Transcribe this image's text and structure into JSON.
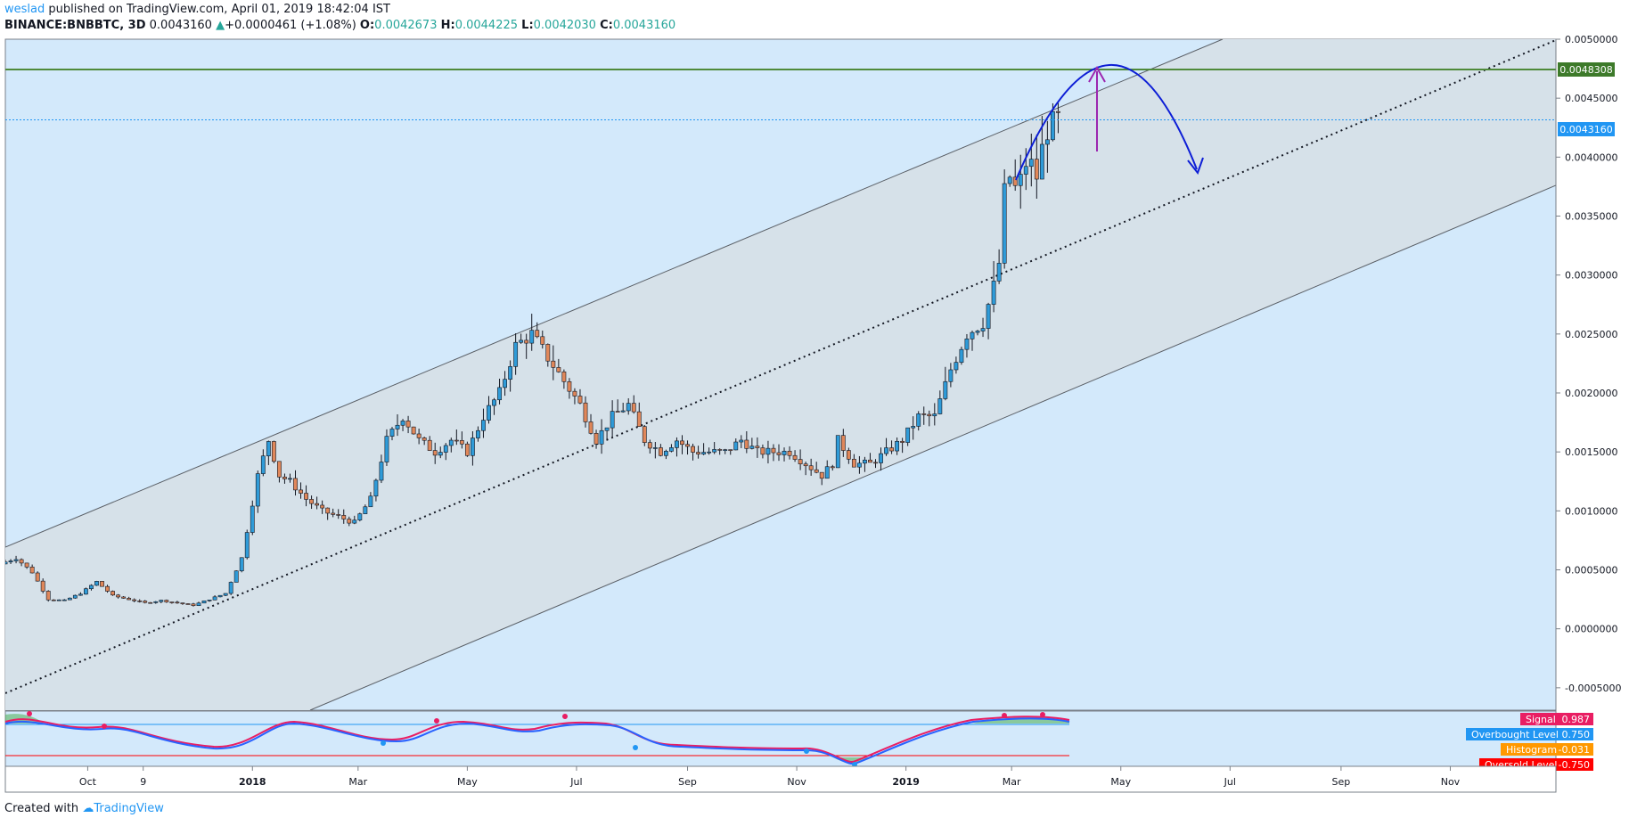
{
  "header": {
    "author": "weslad",
    "published_text": "published on TradingView.com, April 01, 2019 18:42:04 IST",
    "symbol": "BINANCE:BNBBTC, 3D",
    "last": "0.0043160",
    "change": "+0.0000461 (+1.08%)",
    "ohlc": [
      {
        "label": "O:",
        "value": "0.0042673"
      },
      {
        "label": "H:",
        "value": "0.0044225"
      },
      {
        "label": "L:",
        "value": "0.0042030"
      },
      {
        "label": "C:",
        "value": "0.0043160"
      }
    ]
  },
  "footer": {
    "created_with": "Created with",
    "brand": "TradingView"
  },
  "colors": {
    "background": "#d3e9fb",
    "channel_fill": "#d6e1e9",
    "up_candle": "#2f9bd8",
    "down_candle": "#e0875a",
    "resistance": "#4f8a3a",
    "arc": "#0d1ed6",
    "arrow": "#9c27b0",
    "last_price": "#2196f3",
    "macd_line": "#2962ff",
    "signal_line": "#e91e63"
  },
  "chart_data": {
    "type": "candlestick",
    "title": "BINANCE:BNBBTC, 3D",
    "y_axis_labels": [
      "0.0050000",
      "0.0045000",
      "0.0040000",
      "0.0035000",
      "0.0030000",
      "0.0025000",
      "0.0020000",
      "0.0015000",
      "0.0010000",
      "0.0005000",
      "0.0000000",
      "-0.0005000"
    ],
    "y_range": [
      -0.00069,
      0.005
    ],
    "x_axis_labels": [
      {
        "label": "Oct",
        "date": "2017-10-01"
      },
      {
        "label": "9",
        "date": "2017-11-01"
      },
      {
        "label": "2018",
        "date": "2018-01-01"
      },
      {
        "label": "Mar",
        "date": "2018-03-01"
      },
      {
        "label": "May",
        "date": "2018-05-01"
      },
      {
        "label": "Jul",
        "date": "2018-07-01"
      },
      {
        "label": "Sep",
        "date": "2018-09-01"
      },
      {
        "label": "Nov",
        "date": "2018-11-01"
      },
      {
        "label": "2019",
        "date": "2019-01-01"
      },
      {
        "label": "Mar",
        "date": "2019-03-01"
      },
      {
        "label": "May",
        "date": "2019-05-01"
      },
      {
        "label": "Jul",
        "date": "2019-07-01"
      },
      {
        "label": "Sep",
        "date": "2019-09-01"
      },
      {
        "label": "Nov",
        "date": "2019-11-01"
      }
    ],
    "x_range": [
      "2017-08-16",
      "2019-12-30"
    ],
    "price_path": [
      [
        "2017-08-16",
        0.00055
      ],
      [
        "2017-08-25",
        0.0006
      ],
      [
        "2017-09-03",
        0.00048
      ],
      [
        "2017-09-12",
        0.00025
      ],
      [
        "2017-09-21",
        0.00024
      ],
      [
        "2017-09-30",
        0.0003
      ],
      [
        "2017-10-09",
        0.0004
      ],
      [
        "2017-10-18",
        0.00028
      ],
      [
        "2017-10-27",
        0.00025
      ],
      [
        "2017-11-05",
        0.00022
      ],
      [
        "2017-11-14",
        0.00024
      ],
      [
        "2017-11-23",
        0.00022
      ],
      [
        "2017-12-02",
        0.0002
      ],
      [
        "2017-12-11",
        0.00025
      ],
      [
        "2017-12-20",
        0.0003
      ],
      [
        "2017-12-29",
        0.0006
      ],
      [
        "2018-01-07",
        0.0013
      ],
      [
        "2018-01-13",
        0.0016
      ],
      [
        "2018-01-19",
        0.0013
      ],
      [
        "2018-01-25",
        0.00125
      ],
      [
        "2018-02-03",
        0.0011
      ],
      [
        "2018-02-12",
        0.001
      ],
      [
        "2018-02-21",
        0.00095
      ],
      [
        "2018-03-02",
        0.0009
      ],
      [
        "2018-03-11",
        0.0011
      ],
      [
        "2018-03-20",
        0.0016
      ],
      [
        "2018-03-29",
        0.0018
      ],
      [
        "2018-04-07",
        0.0016
      ],
      [
        "2018-04-16",
        0.0015
      ],
      [
        "2018-04-25",
        0.0016
      ],
      [
        "2018-05-04",
        0.0015
      ],
      [
        "2018-05-13",
        0.0018
      ],
      [
        "2018-05-22",
        0.002
      ],
      [
        "2018-05-31",
        0.0024
      ],
      [
        "2018-06-09",
        0.0025
      ],
      [
        "2018-06-18",
        0.0023
      ],
      [
        "2018-06-27",
        0.0021
      ],
      [
        "2018-07-06",
        0.0019
      ],
      [
        "2018-07-15",
        0.0016
      ],
      [
        "2018-07-24",
        0.0018
      ],
      [
        "2018-08-02",
        0.0019
      ],
      [
        "2018-08-11",
        0.0016
      ],
      [
        "2018-08-20",
        0.0015
      ],
      [
        "2018-08-29",
        0.0016
      ],
      [
        "2018-09-07",
        0.0015
      ],
      [
        "2018-09-16",
        0.0015
      ],
      [
        "2018-09-25",
        0.0015
      ],
      [
        "2018-10-04",
        0.0016
      ],
      [
        "2018-10-13",
        0.0015
      ],
      [
        "2018-10-22",
        0.0015
      ],
      [
        "2018-10-31",
        0.0015
      ],
      [
        "2018-11-09",
        0.0014
      ],
      [
        "2018-11-18",
        0.0013
      ],
      [
        "2018-11-24",
        0.0014
      ],
      [
        "2018-11-27",
        0.0016
      ],
      [
        "2018-12-06",
        0.0014
      ],
      [
        "2018-12-15",
        0.0014
      ],
      [
        "2018-12-24",
        0.0015
      ],
      [
        "2019-01-02",
        0.0016
      ],
      [
        "2019-01-11",
        0.0018
      ],
      [
        "2019-01-20",
        0.0018
      ],
      [
        "2019-01-29",
        0.0022
      ],
      [
        "2019-02-07",
        0.0025
      ],
      [
        "2019-02-16",
        0.0026
      ],
      [
        "2019-02-22",
        0.0029
      ],
      [
        "2019-02-25",
        0.0031
      ],
      [
        "2019-03-01",
        0.0039
      ],
      [
        "2019-03-07",
        0.0037
      ],
      [
        "2019-03-13",
        0.004
      ],
      [
        "2019-03-19",
        0.0038
      ],
      [
        "2019-03-22",
        0.0042
      ],
      [
        "2019-03-29",
        0.004316
      ]
    ],
    "annotations": {
      "resistance_level": "0.0048308",
      "last_price": "0.0043160"
    }
  },
  "indicator": {
    "legend": [
      {
        "name": "Signal",
        "value": "0.987",
        "color": "#e91e63"
      },
      {
        "name": "Overbought Level",
        "value": "0.750",
        "color": "#2196f3"
      },
      {
        "name": "Histogram",
        "value": "-0.031",
        "color": "#ff9800"
      },
      {
        "name": "Oversold Level",
        "value": "-0.750",
        "color": "#ff0000"
      }
    ]
  }
}
